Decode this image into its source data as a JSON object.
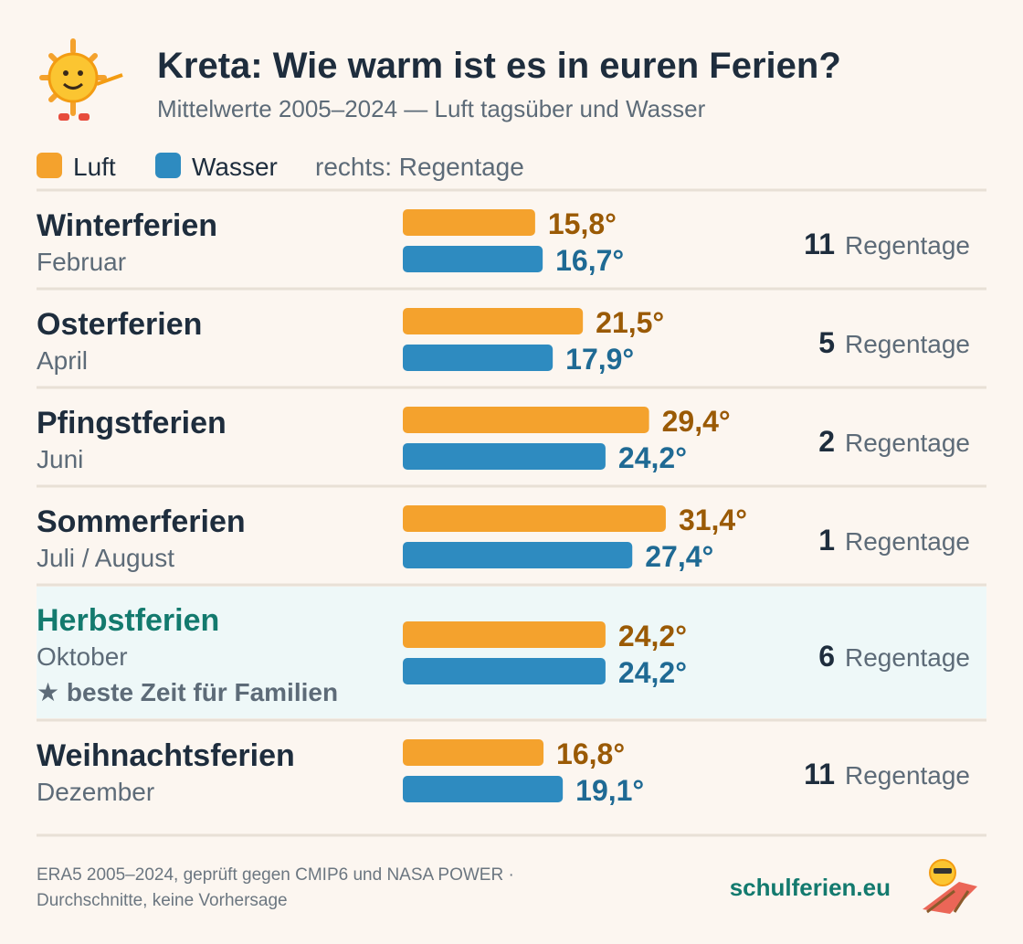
{
  "chart_data": {
    "type": "bar",
    "title": "Kreta: Wie warm ist es in euren Ferien?",
    "subtitle": "Mittelwerte 2005–2024 — Luft tagsüber und Wasser",
    "legend_note": "rechts: Regentage",
    "categories": [
      "Winterferien",
      "Osterferien",
      "Pfingstferien",
      "Sommerferien",
      "Herbstferien",
      "Weihnachtsferien"
    ],
    "category_sublabels": [
      "Februar",
      "April",
      "Juni",
      "Juli / August",
      "Oktober",
      "Dezember"
    ],
    "category_notes": [
      null,
      null,
      null,
      null,
      "★ beste Zeit für Familien",
      null
    ],
    "series": [
      {
        "name": "Luft",
        "color": "#f4a22d",
        "label_color": "#9a5a05",
        "values": [
          15.8,
          21.5,
          29.4,
          31.4,
          24.2,
          16.8
        ],
        "value_labels": [
          "15,8°",
          "21,5°",
          "29,4°",
          "31,4°",
          "24,2°",
          "16,8°"
        ]
      },
      {
        "name": "Wasser",
        "color": "#2e8bc0",
        "label_color": "#1f6a94",
        "values": [
          16.7,
          17.9,
          24.2,
          27.4,
          24.2,
          19.1
        ],
        "value_labels": [
          "16,7°",
          "17,9°",
          "24,2°",
          "27,4°",
          "24,2°",
          "19,1°"
        ]
      }
    ],
    "rain_days": [
      11,
      5,
      2,
      1,
      6,
      11
    ],
    "rain_label": "Regentage",
    "footer": [
      "ERA5 2005–2024, geprüft gegen CMIP6 und NASA POWER ·",
      "Durchschnitte, keine Vorhersage"
    ],
    "brand": "schulferien.eu"
  }
}
